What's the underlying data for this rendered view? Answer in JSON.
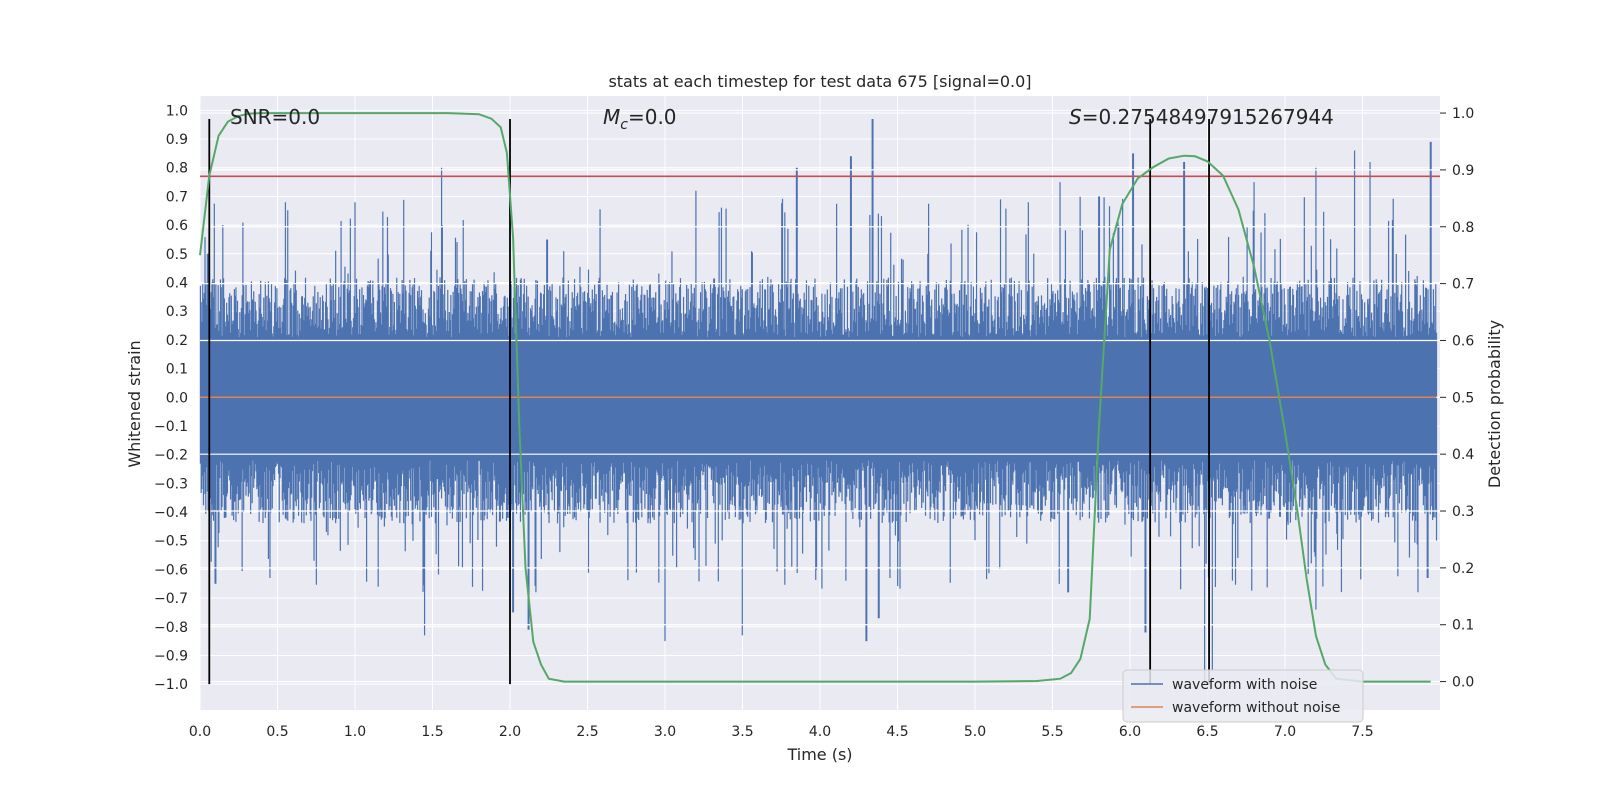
{
  "chart_data": {
    "type": "line",
    "title": "stats at each timestep for test data 675 [signal=0.0]",
    "xlabel": "Time (s)",
    "ylabel_left": "Whitened strain",
    "ylabel_right": "Detection probability",
    "xlim": [
      0.0,
      8.0
    ],
    "ylim_left": [
      -1.09,
      1.05
    ],
    "ylim_right": [
      -0.05,
      1.03
    ],
    "x_ticks": [
      0.0,
      0.5,
      1.0,
      1.5,
      2.0,
      2.5,
      3.0,
      3.5,
      4.0,
      4.5,
      5.0,
      5.5,
      6.0,
      6.5,
      7.0,
      7.5
    ],
    "x_tick_labels": [
      "0.0",
      "0.5",
      "1.0",
      "1.5",
      "2.0",
      "2.5",
      "3.0",
      "3.5",
      "4.0",
      "4.5",
      "5.0",
      "5.5",
      "6.0",
      "6.5",
      "7.0",
      "7.5"
    ],
    "y_left_ticks": [
      1.0,
      0.9,
      0.8,
      0.7,
      0.6,
      0.5,
      0.4,
      0.3,
      0.2,
      0.1,
      0.0,
      -0.1,
      -0.2,
      -0.3,
      -0.4,
      -0.5,
      -0.6,
      -0.7,
      -0.8,
      -0.9,
      -1.0
    ],
    "y_left_tick_labels": [
      "1.0",
      "0.9",
      "0.8",
      "0.7",
      "0.6",
      "0.5",
      "0.4",
      "0.3",
      "0.2",
      "0.1",
      "0.0",
      "−0.1",
      "−0.2",
      "−0.3",
      "−0.4",
      "−0.5",
      "−0.6",
      "−0.7",
      "−0.8",
      "−0.9",
      "−1.0"
    ],
    "y_right_ticks": [
      1.0,
      0.9,
      0.8,
      0.7,
      0.6,
      0.5,
      0.4,
      0.3,
      0.2,
      0.1,
      0.0
    ],
    "y_right_tick_labels": [
      "1.0",
      "0.9",
      "0.8",
      "0.7",
      "0.6",
      "0.5",
      "0.4",
      "0.3",
      "0.2",
      "0.1",
      "0.0"
    ],
    "annotations": {
      "snr": "SNR=0.0",
      "mc_symbol": "M",
      "mc_sub": "c",
      "mc_value": "=0.0",
      "s_symbol": "S",
      "s_value": "=0.27548497915267944"
    },
    "threshold_left": 0.77,
    "vertical_lines_x": [
      0.06,
      2.0,
      6.13,
      6.51
    ],
    "vertical_lines_range": [
      -1.0,
      0.97
    ],
    "series": [
      {
        "name": "waveform with noise",
        "color": "#4c72b0",
        "style": "noise_band",
        "typical_upper": 0.38,
        "typical_lower": -0.4,
        "peaks_upper": [
          [
            0.05,
            0.5
          ],
          [
            0.55,
            0.68
          ],
          [
            1.0,
            0.68
          ],
          [
            1.56,
            0.8
          ],
          [
            2.24,
            0.55
          ],
          [
            3.2,
            0.72
          ],
          [
            3.85,
            0.8
          ],
          [
            4.2,
            0.84
          ],
          [
            4.34,
            0.97
          ],
          [
            5.55,
            0.75
          ],
          [
            5.8,
            0.7
          ],
          [
            6.02,
            0.85
          ],
          [
            6.35,
            0.82
          ],
          [
            6.8,
            0.75
          ],
          [
            7.2,
            0.8
          ],
          [
            7.45,
            0.86
          ],
          [
            7.55,
            0.82
          ],
          [
            7.94,
            0.89
          ]
        ],
        "peaks_lower": [
          [
            0.1,
            -0.65
          ],
          [
            0.45,
            -0.63
          ],
          [
            1.45,
            -0.83
          ],
          [
            2.02,
            -0.75
          ],
          [
            2.12,
            -0.81
          ],
          [
            3.0,
            -0.85
          ],
          [
            3.5,
            -0.83
          ],
          [
            4.3,
            -0.85
          ],
          [
            4.38,
            -0.77
          ],
          [
            5.6,
            -0.68
          ],
          [
            6.1,
            -0.82
          ],
          [
            6.48,
            -1.0
          ],
          [
            6.53,
            -0.95
          ],
          [
            7.2,
            -0.74
          ],
          [
            7.92,
            -0.63
          ]
        ]
      },
      {
        "name": "waveform without noise",
        "color": "#dd8452",
        "x": [
          0.0,
          8.0
        ],
        "y": [
          0.0,
          0.0
        ]
      },
      {
        "name": "detection probability",
        "color": "#55a868",
        "axis": "right",
        "x": [
          0.0,
          0.06,
          0.12,
          0.18,
          0.25,
          0.32,
          0.4,
          0.5,
          0.7,
          1.0,
          1.3,
          1.6,
          1.8,
          1.88,
          1.94,
          1.98,
          2.02,
          2.06,
          2.1,
          2.15,
          2.2,
          2.25,
          2.35,
          2.5,
          3.0,
          4.0,
          5.0,
          5.4,
          5.55,
          5.62,
          5.68,
          5.74,
          5.8,
          5.87,
          5.95,
          6.05,
          6.15,
          6.25,
          6.35,
          6.42,
          6.5,
          6.6,
          6.7,
          6.8,
          6.9,
          7.0,
          7.08,
          7.14,
          7.2,
          7.26,
          7.33,
          7.5,
          7.94
        ],
        "y": [
          0.75,
          0.89,
          0.96,
          0.985,
          0.995,
          0.999,
          1.0,
          1.0,
          1.0,
          1.0,
          1.0,
          1.0,
          0.998,
          0.99,
          0.975,
          0.93,
          0.78,
          0.45,
          0.2,
          0.07,
          0.03,
          0.005,
          0.0,
          0.0,
          0.0,
          0.0,
          0.0,
          0.001,
          0.005,
          0.015,
          0.04,
          0.11,
          0.45,
          0.76,
          0.84,
          0.885,
          0.905,
          0.92,
          0.925,
          0.924,
          0.915,
          0.89,
          0.83,
          0.73,
          0.6,
          0.44,
          0.3,
          0.18,
          0.08,
          0.03,
          0.005,
          0.0,
          0.0
        ]
      }
    ],
    "legend": [
      {
        "label": "waveform with noise",
        "color": "#4c72b0"
      },
      {
        "label": "waveform without noise",
        "color": "#dd8452"
      }
    ],
    "legend_position": "bottom-right",
    "grid": true,
    "colors": {
      "background": "#eaeaf2",
      "grid": "#ffffff",
      "threshold": "#c44e52",
      "vertical": "#000000",
      "text": "#262626"
    }
  }
}
